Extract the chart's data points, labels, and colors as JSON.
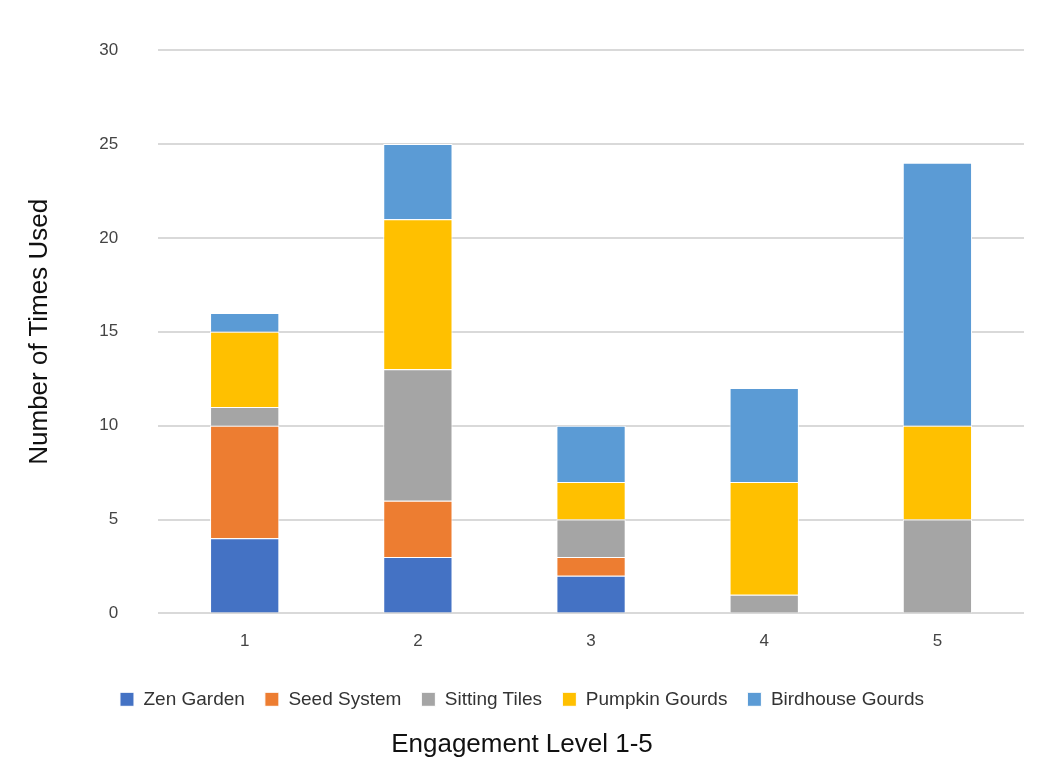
{
  "chart_data": {
    "type": "bar",
    "stacked": true,
    "xlabel": "Engagement Level 1-5",
    "ylabel": "Number of Times Used",
    "categories": [
      "1",
      "2",
      "3",
      "4",
      "5"
    ],
    "series": [
      {
        "name": "Zen Garden",
        "color": "#4472c4",
        "values": [
          4,
          3,
          2,
          0,
          0
        ]
      },
      {
        "name": "Seed System",
        "color": "#ed7d31",
        "values": [
          6,
          3,
          1,
          0,
          0
        ]
      },
      {
        "name": "Sitting Tiles",
        "color": "#a5a5a5",
        "values": [
          1,
          7,
          2,
          1,
          5
        ]
      },
      {
        "name": "Pumpkin Gourds",
        "color": "#ffc000",
        "values": [
          4,
          8,
          2,
          6,
          5
        ]
      },
      {
        "name": "Birdhouse Gourds",
        "color": "#5b9bd5",
        "values": [
          1,
          4,
          3,
          5,
          14
        ]
      }
    ],
    "ylim": [
      0,
      30
    ],
    "yticks": [
      0,
      5,
      10,
      15,
      20,
      25,
      30
    ],
    "grid": "y",
    "legend": "bottom"
  }
}
